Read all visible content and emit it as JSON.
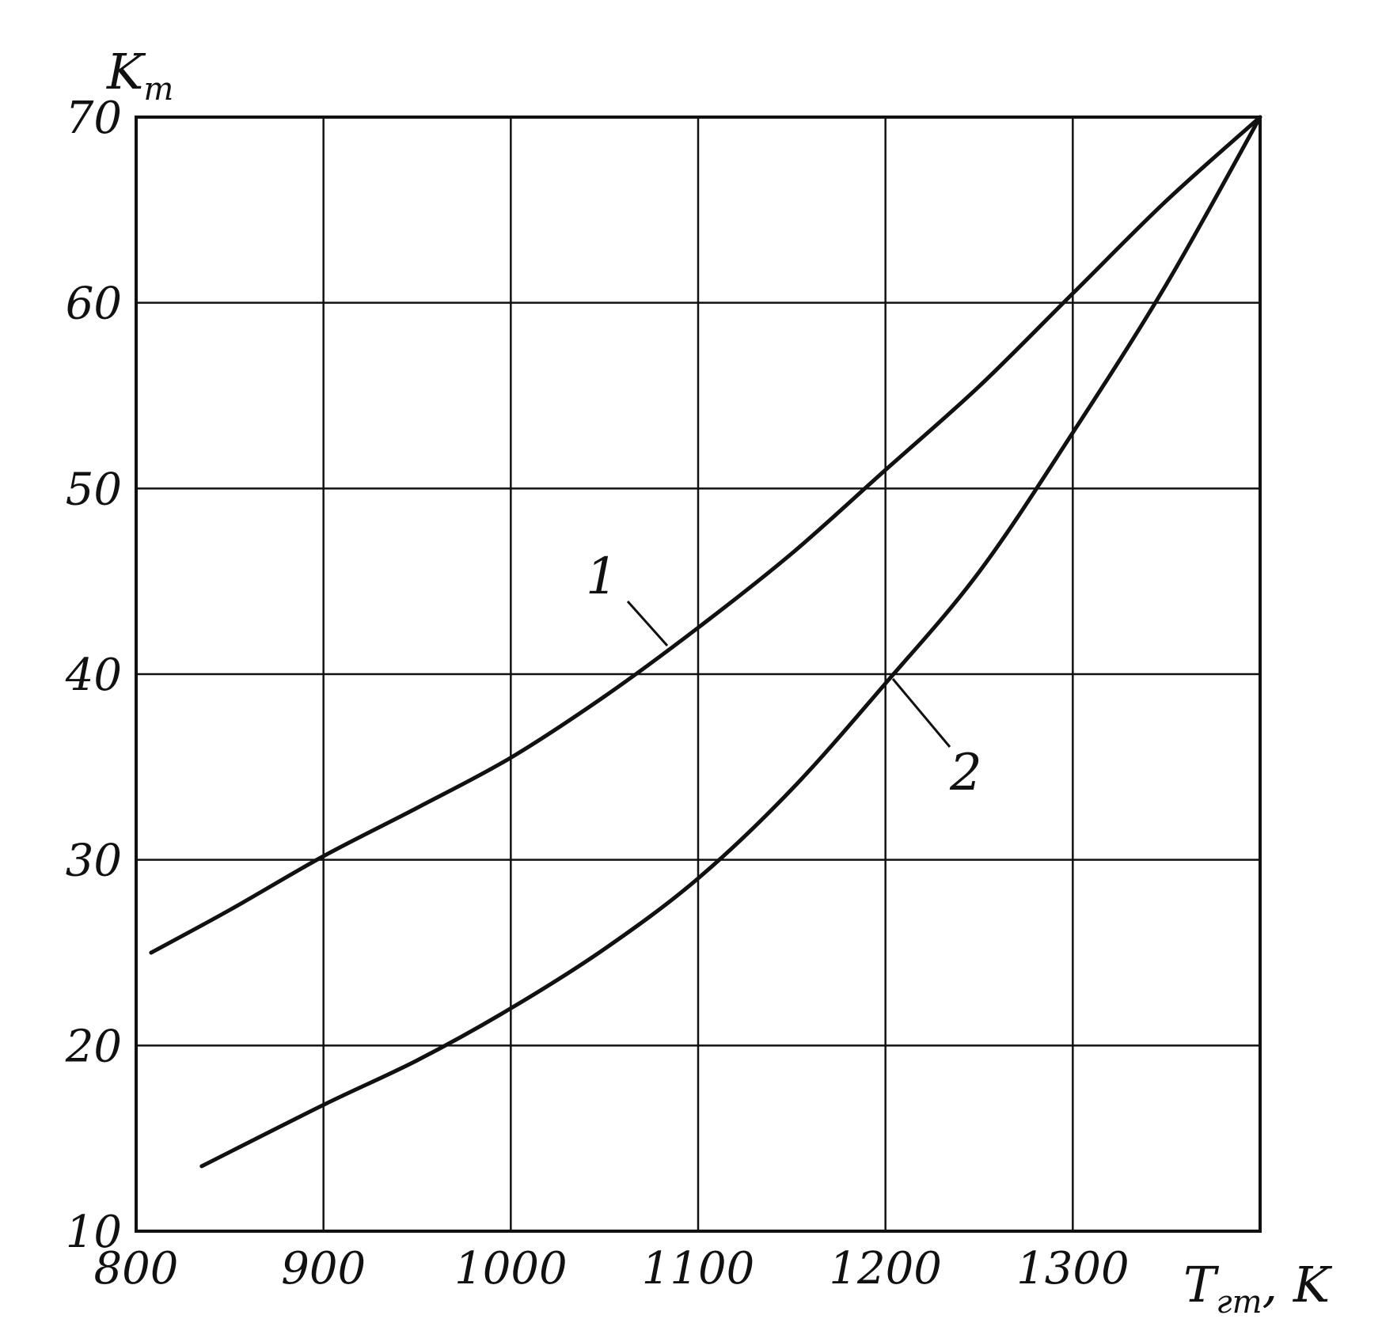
{
  "chart_data": {
    "type": "line",
    "title": "",
    "xlabel": {
      "main": "T",
      "sub": "гт",
      "unit": ", K"
    },
    "ylabel": {
      "main": "K",
      "sub": "т"
    },
    "xlim": [
      800,
      1400
    ],
    "ylim": [
      10,
      70
    ],
    "x_ticks": [
      "800",
      "900",
      "1000",
      "1100",
      "1200",
      "1300"
    ],
    "y_ticks": [
      "10",
      "20",
      "30",
      "40",
      "50",
      "60",
      "70"
    ],
    "grid": true,
    "series": [
      {
        "name": "1",
        "x": [
          808,
          850,
          900,
          950,
          1000,
          1050,
          1100,
          1150,
          1200,
          1250,
          1300,
          1350,
          1400
        ],
        "y": [
          25,
          27.3,
          30.2,
          32.8,
          35.5,
          38.8,
          42.5,
          46.5,
          51,
          55.5,
          60.5,
          65.5,
          70
        ]
      },
      {
        "name": "2",
        "x": [
          835,
          900,
          950,
          1000,
          1050,
          1100,
          1150,
          1200,
          1250,
          1300,
          1350,
          1400
        ],
        "y": [
          13.5,
          16.8,
          19.2,
          22,
          25.2,
          29,
          33.8,
          39.5,
          45.5,
          53,
          61,
          70
        ]
      }
    ]
  }
}
